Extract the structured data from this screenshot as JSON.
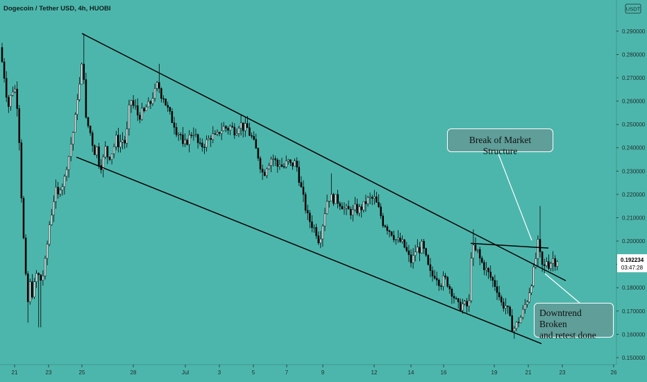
{
  "header": {
    "title": "Dogecoin / Tether USD, 4h, HUOBI",
    "currency_badge": "USDT"
  },
  "price_badge": {
    "price": "0.192234",
    "countdown": "03:47:28"
  },
  "annotations": {
    "bms": "Break of Market Structure",
    "downtrend_line1": "Downtrend Broken",
    "downtrend_line2": "and retest done"
  },
  "colors": {
    "background": "#4db6ac",
    "candle_up": "#ffffff",
    "candle_down": "#000000",
    "price_badge": "#ffffff",
    "bubble": "#5f9e99"
  },
  "chart_data": {
    "type": "candlestick",
    "title": "Dogecoin / Tether USD, 4h, HUOBI",
    "ylim": [
      0.147,
      0.298
    ],
    "y_ticks": [
      "0.150000",
      "0.160000",
      "0.170000",
      "0.180000",
      "0.190000",
      "0.200000",
      "0.210000",
      "0.220000",
      "0.230000",
      "0.240000",
      "0.250000",
      "0.260000",
      "0.270000",
      "0.280000",
      "0.290000"
    ],
    "x_ticks": [
      "21",
      "23",
      "25",
      "28",
      "Jul",
      "3",
      "5",
      "7",
      "9",
      "12",
      "14",
      "16",
      "19",
      "21",
      "23",
      "26"
    ],
    "last_price": 0.192234,
    "price_path": [
      [
        0,
        0.283
      ],
      [
        4,
        0.276
      ],
      [
        8,
        0.268
      ],
      [
        12,
        0.257
      ],
      [
        16,
        0.262
      ],
      [
        20,
        0.266
      ],
      [
        24,
        0.264
      ],
      [
        28,
        0.246
      ],
      [
        32,
        0.215
      ],
      [
        36,
        0.192
      ],
      [
        40,
        0.172
      ],
      [
        44,
        0.182
      ],
      [
        48,
        0.176
      ],
      [
        52,
        0.186
      ],
      [
        56,
        0.185
      ],
      [
        60,
        0.183
      ],
      [
        64,
        0.187
      ],
      [
        68,
        0.197
      ],
      [
        72,
        0.208
      ],
      [
        76,
        0.214
      ],
      [
        80,
        0.222
      ],
      [
        84,
        0.219
      ],
      [
        88,
        0.225
      ],
      [
        92,
        0.224
      ],
      [
        96,
        0.232
      ],
      [
        100,
        0.237
      ],
      [
        104,
        0.244
      ],
      [
        108,
        0.25
      ],
      [
        112,
        0.262
      ],
      [
        116,
        0.268
      ],
      [
        120,
        0.28
      ],
      [
        124,
        0.252
      ],
      [
        128,
        0.249
      ],
      [
        132,
        0.245
      ],
      [
        136,
        0.238
      ],
      [
        140,
        0.24
      ],
      [
        144,
        0.232
      ],
      [
        148,
        0.233
      ],
      [
        152,
        0.24
      ],
      [
        156,
        0.236
      ],
      [
        160,
        0.237
      ],
      [
        164,
        0.24
      ],
      [
        168,
        0.244
      ],
      [
        172,
        0.241
      ],
      [
        176,
        0.244
      ],
      [
        180,
        0.242
      ],
      [
        184,
        0.248
      ],
      [
        188,
        0.262
      ],
      [
        192,
        0.258
      ],
      [
        196,
        0.257
      ],
      [
        200,
        0.253
      ],
      [
        204,
        0.255
      ],
      [
        208,
        0.255
      ],
      [
        212,
        0.258
      ],
      [
        216,
        0.258
      ],
      [
        220,
        0.262
      ],
      [
        224,
        0.264
      ],
      [
        228,
        0.268
      ],
      [
        232,
        0.263
      ],
      [
        236,
        0.262
      ],
      [
        240,
        0.258
      ],
      [
        244,
        0.255
      ],
      [
        248,
        0.252
      ],
      [
        252,
        0.25
      ],
      [
        256,
        0.246
      ],
      [
        260,
        0.247
      ],
      [
        264,
        0.24
      ],
      [
        268,
        0.242
      ],
      [
        272,
        0.244
      ],
      [
        276,
        0.246
      ],
      [
        280,
        0.247
      ],
      [
        284,
        0.243
      ],
      [
        288,
        0.24
      ],
      [
        292,
        0.241
      ],
      [
        296,
        0.242
      ],
      [
        300,
        0.243
      ],
      [
        304,
        0.245
      ],
      [
        308,
        0.245
      ],
      [
        312,
        0.244
      ],
      [
        316,
        0.247
      ],
      [
        320,
        0.248
      ],
      [
        324,
        0.249
      ],
      [
        328,
        0.248
      ],
      [
        332,
        0.249
      ],
      [
        336,
        0.248
      ],
      [
        340,
        0.247
      ],
      [
        344,
        0.25
      ],
      [
        348,
        0.25
      ],
      [
        352,
        0.248
      ],
      [
        356,
        0.249
      ],
      [
        360,
        0.246
      ],
      [
        364,
        0.244
      ],
      [
        368,
        0.24
      ],
      [
        372,
        0.237
      ],
      [
        376,
        0.232
      ],
      [
        380,
        0.228
      ],
      [
        384,
        0.232
      ],
      [
        388,
        0.234
      ],
      [
        392,
        0.236
      ],
      [
        396,
        0.235
      ],
      [
        400,
        0.232
      ],
      [
        404,
        0.234
      ],
      [
        408,
        0.231
      ],
      [
        412,
        0.233
      ],
      [
        416,
        0.234
      ],
      [
        420,
        0.232
      ],
      [
        424,
        0.234
      ],
      [
        428,
        0.232
      ],
      [
        432,
        0.226
      ],
      [
        436,
        0.22
      ],
      [
        440,
        0.215
      ],
      [
        444,
        0.21
      ],
      [
        448,
        0.208
      ],
      [
        452,
        0.206
      ],
      [
        456,
        0.204
      ],
      [
        460,
        0.2
      ],
      [
        464,
        0.205
      ],
      [
        468,
        0.212
      ],
      [
        472,
        0.218
      ],
      [
        476,
        0.219
      ],
      [
        480,
        0.218
      ],
      [
        484,
        0.218
      ],
      [
        488,
        0.217
      ],
      [
        492,
        0.216
      ],
      [
        496,
        0.214
      ],
      [
        500,
        0.213
      ],
      [
        504,
        0.213
      ],
      [
        508,
        0.212
      ],
      [
        512,
        0.214
      ],
      [
        516,
        0.213
      ],
      [
        520,
        0.214
      ],
      [
        524,
        0.215
      ],
      [
        528,
        0.217
      ],
      [
        532,
        0.218
      ],
      [
        536,
        0.218
      ],
      [
        540,
        0.218
      ],
      [
        544,
        0.215
      ],
      [
        548,
        0.212
      ],
      [
        552,
        0.208
      ],
      [
        556,
        0.207
      ],
      [
        560,
        0.205
      ],
      [
        564,
        0.204
      ],
      [
        568,
        0.202
      ],
      [
        572,
        0.2
      ],
      [
        576,
        0.2
      ],
      [
        580,
        0.199
      ],
      [
        584,
        0.197
      ],
      [
        588,
        0.194
      ],
      [
        592,
        0.191
      ],
      [
        596,
        0.193
      ],
      [
        600,
        0.197
      ],
      [
        604,
        0.196
      ],
      [
        608,
        0.198
      ],
      [
        612,
        0.195
      ],
      [
        616,
        0.19
      ],
      [
        620,
        0.186
      ],
      [
        624,
        0.185
      ],
      [
        628,
        0.186
      ],
      [
        632,
        0.183
      ],
      [
        636,
        0.182
      ],
      [
        640,
        0.184
      ],
      [
        644,
        0.183
      ],
      [
        648,
        0.18
      ],
      [
        652,
        0.178
      ],
      [
        656,
        0.175
      ],
      [
        660,
        0.172
      ],
      [
        664,
        0.172
      ],
      [
        668,
        0.173
      ],
      [
        672,
        0.172
      ],
      [
        676,
        0.172
      ],
      [
        680,
        0.199
      ],
      [
        684,
        0.195
      ],
      [
        688,
        0.196
      ],
      [
        692,
        0.192
      ],
      [
        696,
        0.19
      ],
      [
        700,
        0.188
      ],
      [
        704,
        0.186
      ],
      [
        708,
        0.184
      ],
      [
        712,
        0.182
      ],
      [
        716,
        0.18
      ],
      [
        720,
        0.176
      ],
      [
        724,
        0.172
      ],
      [
        728,
        0.173
      ],
      [
        732,
        0.17
      ],
      [
        736,
        0.165
      ],
      [
        740,
        0.162
      ],
      [
        744,
        0.164
      ],
      [
        748,
        0.166
      ],
      [
        752,
        0.168
      ],
      [
        756,
        0.172
      ],
      [
        760,
        0.175
      ],
      [
        764,
        0.18
      ],
      [
        768,
        0.185
      ],
      [
        772,
        0.192
      ],
      [
        776,
        0.2
      ],
      [
        780,
        0.19
      ],
      [
        784,
        0.188
      ],
      [
        788,
        0.192
      ],
      [
        792,
        0.189
      ],
      [
        796,
        0.193
      ],
      [
        800,
        0.191
      ],
      [
        803,
        0.192234
      ]
    ],
    "trendlines": [
      {
        "name": "channel-top",
        "points": [
          [
            118,
            0.289
          ],
          [
            815,
            0.183
          ]
        ]
      },
      {
        "name": "channel-bottom",
        "points": [
          [
            110,
            0.236
          ],
          [
            780,
            0.156
          ]
        ]
      },
      {
        "name": "market-structure",
        "points": [
          [
            678,
            0.199
          ],
          [
            790,
            0.197
          ]
        ]
      }
    ]
  }
}
